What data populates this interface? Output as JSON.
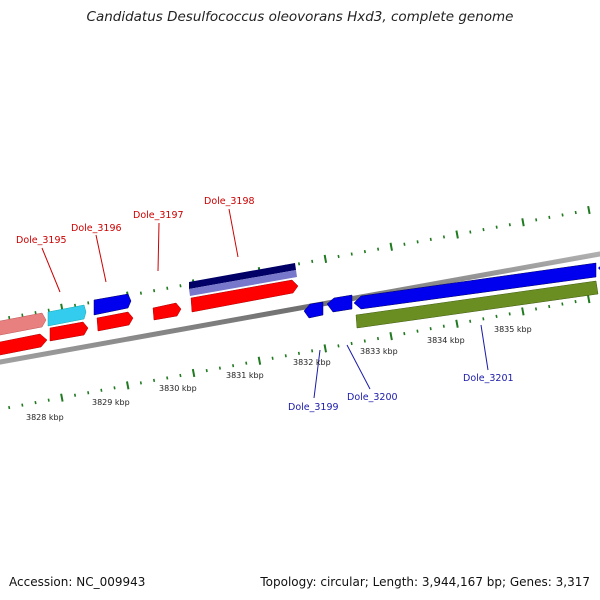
{
  "title": "Candidatus Desulfococcus oleovorans Hxd3, complete genome",
  "footer": {
    "accession": "Accession: NC_009943",
    "summary": "Topology: circular; Length: 3,944,167 bp; Genes: 3,317"
  },
  "kbp_labels": [
    "3828 kbp",
    "3829 kbp",
    "3830 kbp",
    "3831 kbp",
    "3832 kbp",
    "3833 kbp",
    "3834 kbp",
    "3835 kbp"
  ],
  "gene_labels_top": [
    "Dole_3195",
    "Dole_3196",
    "Dole_3197",
    "Dole_3198"
  ],
  "gene_labels_bottom": [
    "Dole_3199",
    "Dole_3200",
    "Dole_3201"
  ],
  "colors": {
    "red": "#ff0000",
    "pink": "#e88080",
    "cyan": "#33ccee",
    "blue": "#0000ee",
    "navy": "#000066",
    "lavender": "#7777cc",
    "olive": "#6b8e23",
    "ticks": "#207a20",
    "backbone": "#888888",
    "label_red": "#cc0000",
    "label_blue": "#1a1aaa"
  }
}
